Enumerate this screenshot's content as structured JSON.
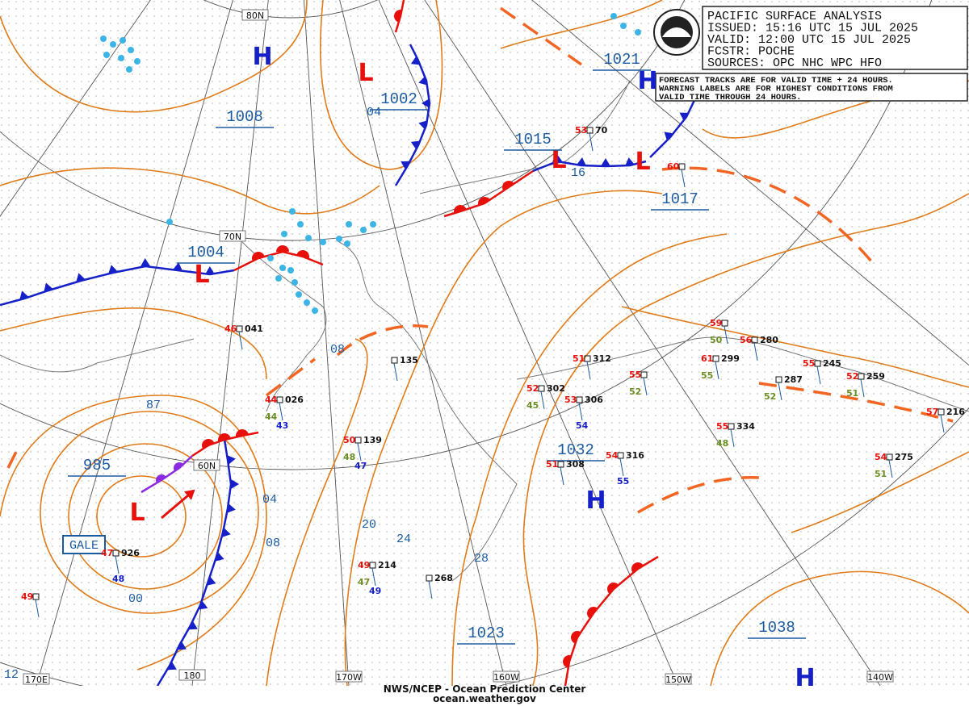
{
  "header": {
    "lines": [
      "PACIFIC SURFACE ANALYSIS",
      "ISSUED: 15:16 UTC 15 JUL 2025",
      "VALID:  12:00 UTC 15 JUL 2025",
      "FCSTR:  POCHE",
      "SOURCES: OPC NHC WPC HFO"
    ]
  },
  "notice": {
    "lines": [
      "FORECAST TRACKS ARE FOR VALID TIME + 24 HOURS.",
      "WARNING LABELS ARE FOR HIGHEST CONDITIONS FROM",
      "VALID TIME THROUGH 24 HOURS."
    ]
  },
  "footer": {
    "lines": [
      "NWS/NCEP - Ocean Prediction Center",
      "ocean.weather.gov"
    ]
  },
  "warning": "GALE",
  "pressure_centers": [
    {
      "symbol": "H",
      "value": 1008
    },
    {
      "symbol": "L",
      "value": 1002
    },
    {
      "symbol": "L",
      "value": 1015
    },
    {
      "symbol": "L",
      "value": 1017
    },
    {
      "symbol": "H",
      "value": 1021
    },
    {
      "symbol": "L",
      "value": 1004
    },
    {
      "symbol": "L",
      "value": 985
    },
    {
      "symbol": "H",
      "value": 1032
    },
    {
      "symbol": "H",
      "value": 1038
    },
    {
      "symbol": null,
      "value": 1023
    }
  ],
  "isobar_labels": [
    "04",
    "16",
    "08",
    "87",
    "04",
    "08",
    "20",
    "24",
    "28",
    "00",
    "12"
  ],
  "graticule_labels": [
    "80N",
    "70N",
    "60N",
    "170E",
    "180",
    "170W",
    "160W",
    "150W",
    "140W"
  ],
  "stations": [
    {
      "temp": 46,
      "pressure": "041"
    },
    {
      "temp": 44,
      "dew": 44,
      "blue": 43,
      "pressure": "026"
    },
    {
      "pressure": "135"
    },
    {
      "temp": 50,
      "dew": 48,
      "blue": 47,
      "pressure": "139"
    },
    {
      "temp": 49,
      "dew": 47,
      "blue": 49,
      "pressure": "214"
    },
    {
      "pressure": "268"
    },
    {
      "temp": 47,
      "blue": 48,
      "pressure": "926"
    },
    {
      "temp": 49
    },
    {
      "temp": 51,
      "pressure": "312"
    },
    {
      "temp": 52,
      "dew": 45,
      "pressure": "302"
    },
    {
      "temp": 53,
      "blue": 54,
      "pressure": "306"
    },
    {
      "temp": 55,
      "dew": 52
    },
    {
      "temp": 51,
      "pressure": "308"
    },
    {
      "temp": 54,
      "blue": 55,
      "pressure": "316"
    },
    {
      "temp": 55,
      "dew": 48,
      "pressure": "334"
    },
    {
      "temp": 54,
      "dew": 51,
      "pressure": "275"
    },
    {
      "temp": 61,
      "dew": 55,
      "pressure": "299"
    },
    {
      "temp": 56,
      "pressure": "280"
    },
    {
      "temp": 55,
      "pressure": "245"
    },
    {
      "temp": 52,
      "dew": 51,
      "pressure": "259"
    },
    {
      "temp": 57,
      "pressure": "216"
    },
    {
      "dew": 52,
      "pressure": "287"
    },
    {
      "temp": 53,
      "pressure": "70"
    },
    {
      "temp": 59,
      "dew": 50
    },
    {
      "temp": 60
    }
  ]
}
